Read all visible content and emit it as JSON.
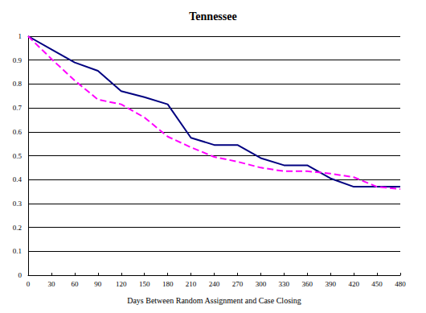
{
  "chart_data": {
    "type": "line",
    "title": "Tennessee",
    "x_label": "Days Between Random Assignment and Case Closing",
    "x": [
      0,
      30,
      60,
      90,
      120,
      150,
      180,
      210,
      240,
      270,
      300,
      330,
      360,
      390,
      420,
      450,
      480
    ],
    "series": [
      {
        "color": "#000080",
        "line_style": "solid",
        "values": [
          1,
          0.945,
          0.89,
          0.855,
          0.77,
          0.745,
          0.715,
          0.575,
          0.545,
          0.545,
          0.49,
          0.46,
          0.46,
          0.405,
          0.37,
          0.37,
          0.37
        ]
      },
      {
        "color": "#ff00ff",
        "line_style": "dashed",
        "values": [
          1,
          0.905,
          0.815,
          0.735,
          0.715,
          0.66,
          0.58,
          0.535,
          0.495,
          0.475,
          0.45,
          0.435,
          0.435,
          0.425,
          0.41,
          0.37,
          0.36
        ]
      }
    ],
    "xlim": [
      0,
      480
    ],
    "xticks": [
      0,
      30,
      60,
      90,
      120,
      150,
      180,
      210,
      240,
      270,
      300,
      330,
      360,
      390,
      420,
      450,
      480
    ],
    "ylim": [
      0,
      1
    ],
    "yticks": [
      0,
      0.1,
      0.2,
      0.3,
      0.4,
      0.5,
      0.6,
      0.7,
      0.8,
      0.9,
      1
    ],
    "grid": true
  }
}
